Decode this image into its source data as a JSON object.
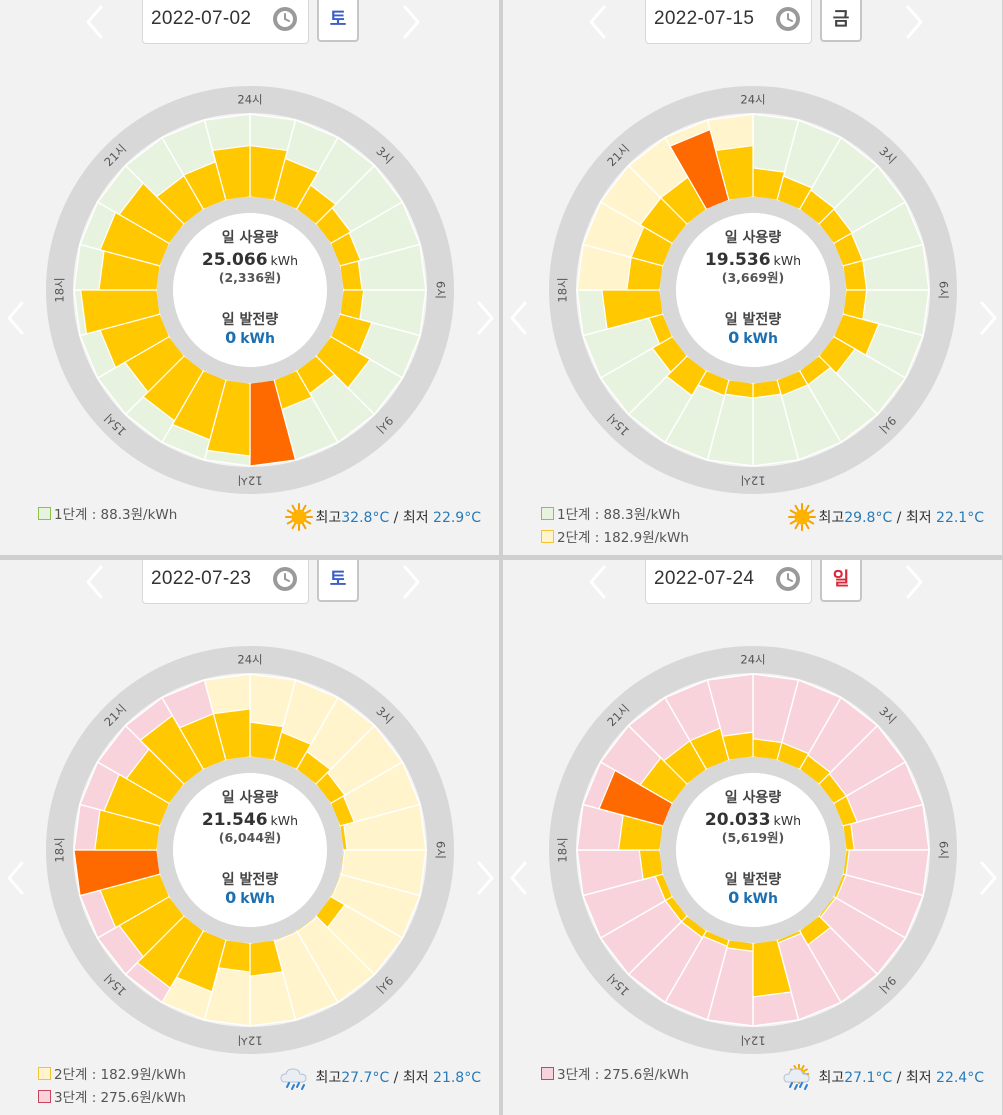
{
  "common": {
    "daily_usage_label": "일 사용량",
    "daily_generation_label": "일 발전량",
    "generation_value": "0",
    "unit": "kWh",
    "hour_labels": [
      "24시",
      "3시",
      "6시",
      "9시",
      "12시",
      "15시",
      "18시",
      "21시"
    ],
    "max_label": "최고",
    "min_label": "최저",
    "separator": "/",
    "colors": {
      "tier1": "#e8f3df",
      "tier2": "#fff4cc",
      "tier3": "#f9d3dc",
      "usage": "#ffc800",
      "peak": "#ff6a00",
      "value": "#1e6fb0"
    }
  },
  "panels": [
    {
      "date": "2022-07-02",
      "day": "토",
      "day_color": "#3a5fc8",
      "usage": "25.066",
      "cost": "(2,336원)",
      "weather_icon": "sun-icon",
      "max_temp": "32.8°C",
      "min_temp": "22.9°C",
      "legend": [
        {
          "label": "1단계 : 88.3원/kWh",
          "tier": "tier1"
        }
      ],
      "chart_data": {
        "type": "radial-bar",
        "title": "일 사용량",
        "hours": [
          1,
          2,
          3,
          4,
          5,
          6,
          7,
          8,
          9,
          10,
          11,
          12,
          13,
          14,
          15,
          16,
          17,
          18,
          19,
          20,
          21,
          22,
          23,
          24
        ],
        "bg_tiers": [
          "tier1",
          "tier1",
          "tier1",
          "tier1",
          "tier1",
          "tier1",
          "tier1",
          "tier1",
          "tier1",
          "tier1",
          "tier1",
          "tier1",
          "tier1",
          "tier1",
          "tier1",
          "tier1",
          "tier1",
          "tier1",
          "tier1",
          "tier1",
          "tier1",
          "tier1",
          "tier1",
          "tier1"
        ],
        "values": [
          0.62,
          0.52,
          0.34,
          0.28,
          0.26,
          0.23,
          0.25,
          0.4,
          0.55,
          0.32,
          0.37,
          1.0,
          0.88,
          0.75,
          0.7,
          0.62,
          0.75,
          0.92,
          0.7,
          0.75,
          0.7,
          0.47,
          0.48,
          0.62
        ],
        "peak_hour": 12
      }
    },
    {
      "date": "2022-07-15",
      "day": "금",
      "day_color": "#444444",
      "usage": "19.536",
      "cost": "(3,669원)",
      "weather_icon": "sun-icon",
      "max_temp": "29.8°C",
      "min_temp": "22.1°C",
      "legend": [
        {
          "label": "1단계 : 88.3원/kWh",
          "tier": "tier1"
        },
        {
          "label": "2단계 : 182.9원/kWh",
          "tier": "tier2"
        }
      ],
      "chart_data": {
        "type": "radial-bar",
        "title": "일 사용량",
        "hours": [
          1,
          2,
          3,
          4,
          5,
          6,
          7,
          8,
          9,
          10,
          11,
          12,
          13,
          14,
          15,
          16,
          17,
          18,
          19,
          20,
          21,
          22,
          23,
          24
        ],
        "bg_tiers": [
          "tier1",
          "tier1",
          "tier1",
          "tier1",
          "tier1",
          "tier1",
          "tier1",
          "tier1",
          "tier1",
          "tier1",
          "tier1",
          "tier1",
          "tier1",
          "tier1",
          "tier1",
          "tier1",
          "tier1",
          "tier1",
          "tier2",
          "tier2",
          "tier2",
          "tier2",
          "tier2",
          "tier2"
        ],
        "values": [
          0.35,
          0.3,
          0.27,
          0.26,
          0.25,
          0.25,
          0.25,
          0.45,
          0.3,
          0.2,
          0.2,
          0.18,
          0.18,
          0.2,
          0.35,
          0.28,
          0.18,
          0.7,
          0.4,
          0.4,
          0.45,
          0.45,
          0.88,
          0.62
        ],
        "peak_hour": 23
      }
    },
    {
      "date": "2022-07-23",
      "day": "토",
      "day_color": "#3a5fc8",
      "usage": "21.546",
      "cost": "(6,044원)",
      "weather_icon": "cloud-rain-icon",
      "max_temp": "27.7°C",
      "min_temp": "21.8°C",
      "legend": [
        {
          "label": "2단계 : 182.9원/kWh",
          "tier": "tier2"
        },
        {
          "label": "3단계 : 275.6원/kWh",
          "tier": "tier3"
        }
      ],
      "chart_data": {
        "type": "radial-bar",
        "title": "일 사용량",
        "hours": [
          1,
          2,
          3,
          4,
          5,
          6,
          7,
          8,
          9,
          10,
          11,
          12,
          13,
          14,
          15,
          16,
          17,
          18,
          19,
          20,
          21,
          22,
          23,
          24
        ],
        "bg_tiers": [
          "tier2",
          "tier2",
          "tier2",
          "tier2",
          "tier2",
          "tier2",
          "tier2",
          "tier2",
          "tier2",
          "tier2",
          "tier2",
          "tier2",
          "tier2",
          "tier2",
          "tier3",
          "tier3",
          "tier3",
          "tier3",
          "tier3",
          "tier3",
          "tier3",
          "tier3",
          "tier3",
          "tier2"
        ],
        "values": [
          0.42,
          0.35,
          0.25,
          0.2,
          0.18,
          0.05,
          0.02,
          0.02,
          0.2,
          0.02,
          0.02,
          0.4,
          0.35,
          0.65,
          0.8,
          0.7,
          0.75,
          1.0,
          0.75,
          0.7,
          0.6,
          0.75,
          0.58,
          0.58
        ],
        "peak_hour": 18
      }
    },
    {
      "date": "2022-07-24",
      "day": "일",
      "day_color": "#d82a3a",
      "usage": "20.033",
      "cost": "(5,619원)",
      "weather_icon": "sun-cloud-rain-icon",
      "max_temp": "27.1°C",
      "min_temp": "22.4°C",
      "legend": [
        {
          "label": "3단계 : 275.6원/kWh",
          "tier": "tier3"
        }
      ],
      "chart_data": {
        "type": "radial-bar",
        "title": "일 사용량",
        "hours": [
          1,
          2,
          3,
          4,
          5,
          6,
          7,
          8,
          9,
          10,
          11,
          12,
          13,
          14,
          15,
          16,
          17,
          18,
          19,
          20,
          21,
          22,
          23,
          24
        ],
        "bg_tiers": [
          "tier3",
          "tier3",
          "tier3",
          "tier3",
          "tier3",
          "tier3",
          "tier3",
          "tier3",
          "tier3",
          "tier3",
          "tier3",
          "tier3",
          "tier3",
          "tier3",
          "tier3",
          "tier3",
          "tier3",
          "tier3",
          "tier3",
          "tier3",
          "tier3",
          "tier3",
          "tier3",
          "tier3"
        ],
        "values": [
          0.22,
          0.22,
          0.2,
          0.18,
          0.18,
          0.1,
          0.04,
          0.04,
          0.03,
          0.2,
          0.04,
          0.65,
          0.1,
          0.08,
          0.1,
          0.1,
          0.1,
          0.25,
          0.5,
          0.8,
          0.45,
          0.4,
          0.4,
          0.3
        ],
        "peak_hour": 20
      }
    }
  ]
}
